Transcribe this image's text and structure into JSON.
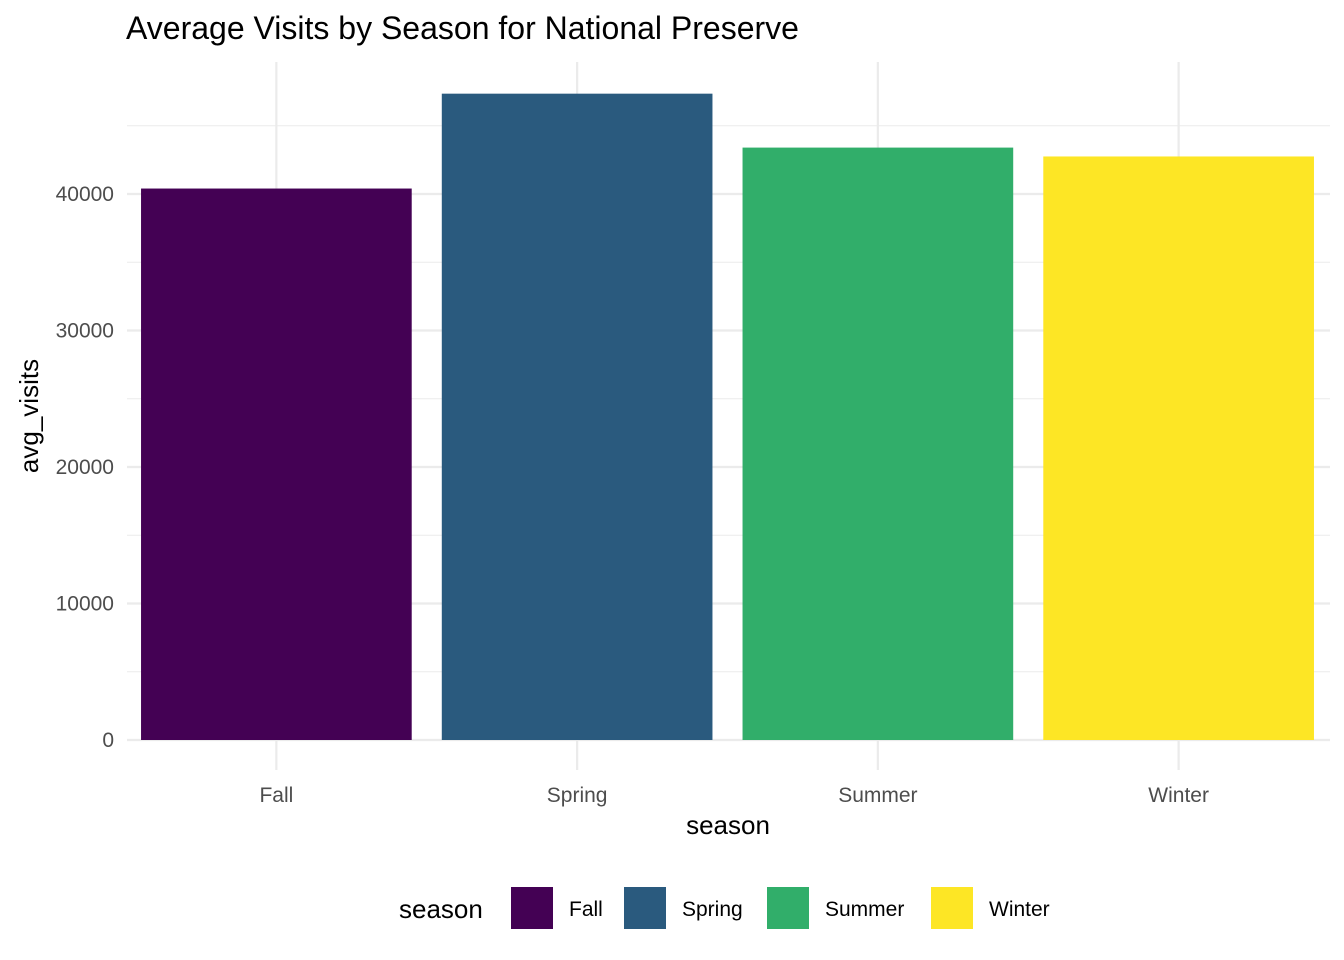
{
  "chart_data": {
    "type": "bar",
    "title": "Average Visits by Season for National Preserve",
    "xlabel": "season",
    "ylabel": "avg_visits",
    "categories": [
      "Fall",
      "Spring",
      "Summer",
      "Winter"
    ],
    "values": [
      40400,
      47350,
      43400,
      42750
    ],
    "colors": [
      "#440154",
      "#2a5a7e",
      "#31ae6a",
      "#fde625"
    ],
    "ylim": [
      0,
      49000
    ],
    "yticks": [
      0,
      10000,
      20000,
      30000,
      40000
    ],
    "ytick_labels": [
      "0",
      "10000",
      "20000",
      "30000",
      "40000"
    ],
    "grid": true,
    "legend": {
      "title": "season",
      "position": "bottom",
      "entries": [
        "Fall",
        "Spring",
        "Summer",
        "Winter"
      ]
    }
  }
}
